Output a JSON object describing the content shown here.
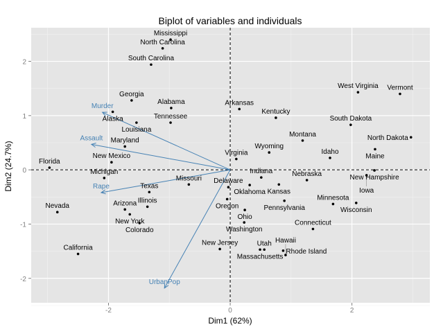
{
  "chart_data": {
    "type": "scatter",
    "title": "Biplot of variables and individuals",
    "xlabel": "Dim1 (62%)",
    "ylabel": "Dim2 (24.7%)",
    "xlim": [
      -3.27,
      3.28
    ],
    "ylim": [
      -2.45,
      2.62
    ],
    "xticks": [
      -2,
      0,
      2
    ],
    "yticks": [
      -2,
      -1,
      0,
      1,
      2
    ],
    "grid": true,
    "reference_lines": {
      "x": 0,
      "y": 0,
      "style": "dashed"
    },
    "individuals": [
      {
        "label": "Mississippi",
        "x": -0.98,
        "y": 2.4
      },
      {
        "label": "North Carolina",
        "x": -1.11,
        "y": 2.24
      },
      {
        "label": "South Carolina",
        "x": -1.3,
        "y": 1.94
      },
      {
        "label": "Georgia",
        "x": -1.62,
        "y": 1.28
      },
      {
        "label": "Alabama",
        "x": -0.97,
        "y": 1.14
      },
      {
        "label": "Alaska",
        "x": -1.93,
        "y": 1.07
      },
      {
        "label": "Louisiana",
        "x": -1.54,
        "y": 0.87
      },
      {
        "label": "Tennessee",
        "x": -0.98,
        "y": 0.87
      },
      {
        "label": "Maryland",
        "x": -1.73,
        "y": 0.43
      },
      {
        "label": "New Mexico",
        "x": -1.95,
        "y": 0.14
      },
      {
        "label": "Florida",
        "x": -2.97,
        "y": 0.04
      },
      {
        "label": "Michigan",
        "x": -2.07,
        "y": -0.15
      },
      {
        "label": "Texas",
        "x": -1.33,
        "y": -0.41
      },
      {
        "label": "Missouri",
        "x": -0.68,
        "y": -0.27
      },
      {
        "label": "Illinois",
        "x": -1.36,
        "y": -0.68
      },
      {
        "label": "Arizona",
        "x": -1.73,
        "y": -0.73
      },
      {
        "label": "New York",
        "x": -1.65,
        "y": -0.82
      },
      {
        "label": "Colorado",
        "x": -1.49,
        "y": -0.98
      },
      {
        "label": "Nevada",
        "x": -2.84,
        "y": -0.78
      },
      {
        "label": "California",
        "x": -2.5,
        "y": -1.55
      },
      {
        "label": "Arkansas",
        "x": 0.15,
        "y": 1.12
      },
      {
        "label": "Kentucky",
        "x": 0.75,
        "y": 0.96
      },
      {
        "label": "West Virginia",
        "x": 2.1,
        "y": 1.43
      },
      {
        "label": "Vermont",
        "x": 2.79,
        "y": 1.4
      },
      {
        "label": "South Dakota",
        "x": 1.98,
        "y": 0.83
      },
      {
        "label": "North Dakota",
        "x": 2.97,
        "y": 0.6
      },
      {
        "label": "Montana",
        "x": 1.19,
        "y": 0.54
      },
      {
        "label": "Maine",
        "x": 2.38,
        "y": 0.38
      },
      {
        "label": "Wyoming",
        "x": 0.64,
        "y": 0.32
      },
      {
        "label": "Idaho",
        "x": 1.64,
        "y": 0.22
      },
      {
        "label": "Virginia",
        "x": 0.1,
        "y": 0.2
      },
      {
        "label": "New Hampshire",
        "x": 2.37,
        "y": -0.01
      },
      {
        "label": "Iowa",
        "x": 2.24,
        "y": -0.1
      },
      {
        "label": "Indiana",
        "x": 0.51,
        "y": -0.14
      },
      {
        "label": "Kansas",
        "x": 0.8,
        "y": -0.27
      },
      {
        "label": "Nebraska",
        "x": 1.26,
        "y": -0.19
      },
      {
        "label": "Oklahoma",
        "x": 0.32,
        "y": -0.28
      },
      {
        "label": "Delaware",
        "x": -0.03,
        "y": -0.32
      },
      {
        "label": "Oregon",
        "x": -0.05,
        "y": -0.54
      },
      {
        "label": "Pennsylvania",
        "x": 0.89,
        "y": -0.57
      },
      {
        "label": "Minnesota",
        "x": 1.69,
        "y": -0.63
      },
      {
        "label": "Wisconsin",
        "x": 2.07,
        "y": -0.61
      },
      {
        "label": "Ohio",
        "x": 0.24,
        "y": -0.74
      },
      {
        "label": "Washington",
        "x": 0.23,
        "y": -0.97
      },
      {
        "label": "Connecticut",
        "x": 1.36,
        "y": -1.09
      },
      {
        "label": "New Jersey",
        "x": -0.17,
        "y": -1.46
      },
      {
        "label": "Massachusetts",
        "x": 0.49,
        "y": -1.47
      },
      {
        "label": "Utah",
        "x": 0.56,
        "y": -1.47
      },
      {
        "label": "Rhode Island",
        "x": 0.87,
        "y": -1.49
      },
      {
        "label": "Hawaii",
        "x": 0.91,
        "y": -1.57
      }
    ],
    "variables": [
      {
        "label": "Murder",
        "x": -2.1,
        "y": 1.06
      },
      {
        "label": "Assault",
        "x": -2.28,
        "y": 0.47
      },
      {
        "label": "Rape",
        "x": -2.12,
        "y": -0.42
      },
      {
        "label": "UrbanPop",
        "x": -1.08,
        "y": -2.18
      }
    ],
    "colors": {
      "panel": "#E5E5E5",
      "grid_major": "#FFFFFF",
      "grid_minor": "#F2F2F2",
      "points": "#000000",
      "variables": "#4682B4",
      "tick_text": "#7F7F7F"
    }
  }
}
